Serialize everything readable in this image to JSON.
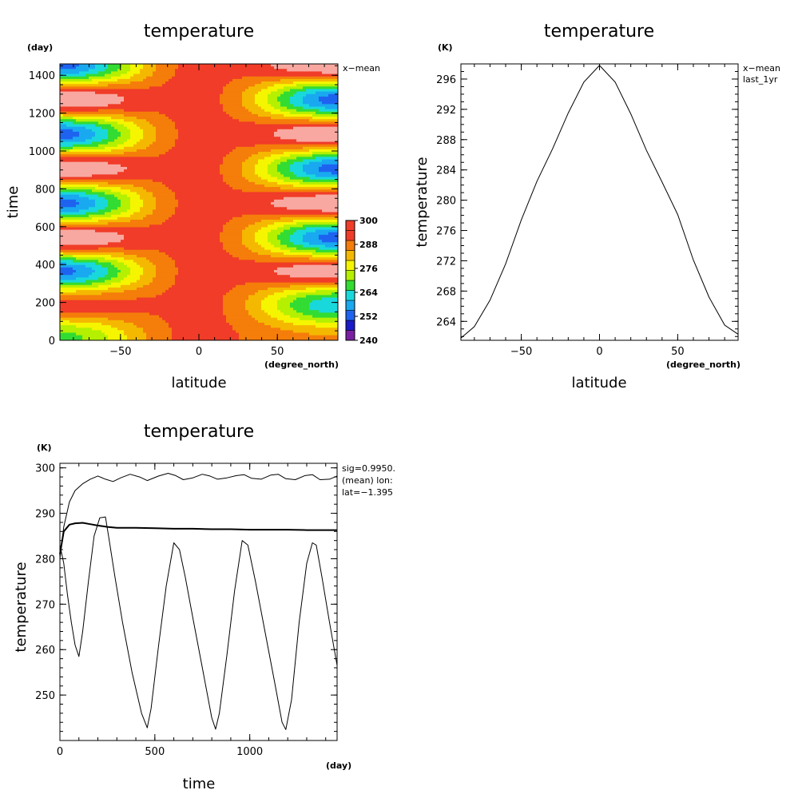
{
  "charts": [
    {
      "title": "temperature",
      "xlabel": "latitude",
      "ylabel": "time",
      "x_unit": "(degree_north)",
      "y_unit": "(day)",
      "annotation": "x−mean",
      "x_ticks": [
        "−50",
        "0",
        "50"
      ],
      "y_ticks": [
        "0",
        "200",
        "400",
        "600",
        "800",
        "1000",
        "1200",
        "1400"
      ],
      "colorbar_labels": [
        "300",
        "288",
        "276",
        "264",
        "252",
        "240"
      ]
    },
    {
      "title": "temperature",
      "xlabel": "latitude",
      "ylabel": "temperature",
      "x_unit": "(degree_north)",
      "y_unit": "(K)",
      "annotation_lines": [
        "x−mean",
        "last_1yr"
      ],
      "x_ticks": [
        "−50",
        "0",
        "50"
      ],
      "y_ticks": [
        "264",
        "268",
        "272",
        "276",
        "280",
        "284",
        "288",
        "292",
        "296"
      ]
    },
    {
      "title": "temperature",
      "xlabel": "time",
      "ylabel": "temperature",
      "x_unit": "(day)",
      "y_unit": "(K)",
      "annotation_lines": [
        "sig=0.9950.",
        "(mean) lon:",
        "lat=−1.395"
      ],
      "x_ticks": [
        "0",
        "500",
        "1000"
      ],
      "y_ticks": [
        "250",
        "260",
        "270",
        "280",
        "290",
        "300"
      ]
    }
  ],
  "chart_data": [
    {
      "type": "heatmap",
      "title": "temperature",
      "xlabel": "latitude",
      "ylabel": "time",
      "xlim": [
        -88.6,
        88.6
      ],
      "ylim": [
        0,
        1460
      ],
      "x_ticks": [
        -50,
        0,
        50
      ],
      "y_ticks": [
        0,
        200,
        400,
        600,
        800,
        1000,
        1200,
        1400
      ],
      "contour_levels": [
        240,
        246,
        252,
        258,
        264,
        270,
        276,
        282,
        288,
        294,
        300
      ],
      "colorbar_labels": [
        300,
        288,
        276,
        264,
        252,
        240
      ],
      "colors": [
        "#7a1fa2",
        "#1a1ac8",
        "#1e63f0",
        "#19a9f0",
        "#19d8dc",
        "#32dc32",
        "#b4f000",
        "#f5f500",
        "#f5b800",
        "#f57d0a",
        "#f03c28",
        "#f8a8a0"
      ],
      "field_min_region_K": 240,
      "field_max_region_K": 300
    },
    {
      "type": "line",
      "title": "temperature",
      "xlabel": "latitude",
      "ylabel": "temperature",
      "xlim": [
        -88.6,
        88.6
      ],
      "ylim": [
        261.5,
        298
      ],
      "x_ticks": [
        -50,
        0,
        50
      ],
      "y_ticks": [
        264,
        268,
        272,
        276,
        280,
        284,
        288,
        292,
        296
      ],
      "series": [
        {
          "x": [
            -88.6,
            -80,
            -70,
            -60,
            -50,
            -40,
            -30,
            -20,
            -10,
            0,
            10,
            20,
            30,
            40,
            50,
            60,
            70,
            80,
            88.6
          ],
          "values": [
            261.8,
            263.3,
            266.8,
            271.6,
            277.4,
            282.5,
            286.8,
            291.5,
            295.6,
            297.8,
            295.6,
            291.4,
            286.6,
            282.4,
            278.1,
            272.1,
            267.2,
            263.5,
            262.3
          ]
        }
      ]
    },
    {
      "type": "line",
      "title": "temperature",
      "xlabel": "time",
      "ylabel": "temperature",
      "xlim": [
        0,
        1460
      ],
      "ylim": [
        240,
        301
      ],
      "x_ticks": [
        0,
        500,
        1000
      ],
      "y_ticks": [
        250,
        260,
        270,
        280,
        290,
        300
      ],
      "series": [
        {
          "x": [
            0,
            20,
            50,
            80,
            120,
            160,
            200,
            240,
            280,
            320,
            370,
            420,
            460,
            520,
            570,
            610,
            650,
            700,
            750,
            790,
            830,
            880,
            930,
            970,
            1010,
            1060,
            1110,
            1150,
            1190,
            1240,
            1290,
            1330,
            1370,
            1420,
            1460
          ],
          "values": [
            280,
            287,
            292.5,
            295,
            296.5,
            297.5,
            298.2,
            297.5,
            297,
            297.8,
            298.6,
            298,
            297.2,
            298.2,
            298.8,
            298.3,
            297.4,
            297.8,
            298.6,
            298.2,
            297.5,
            297.8,
            298.3,
            298.5,
            297.7,
            297.5,
            298.4,
            298.6,
            297.6,
            297.4,
            298.3,
            298.5,
            297.4,
            297.5,
            298.2
          ]
        },
        {
          "x": [
            0,
            20,
            50,
            80,
            120,
            160,
            200,
            250,
            300,
            400,
            500,
            600,
            700,
            800,
            900,
            1000,
            1100,
            1200,
            1300,
            1400,
            1460
          ],
          "values": [
            281,
            286,
            287.5,
            287.8,
            287.9,
            287.6,
            287.3,
            287.0,
            286.8,
            286.8,
            286.7,
            286.6,
            286.6,
            286.5,
            286.5,
            286.4,
            286.4,
            286.4,
            286.3,
            286.3,
            286.3
          ]
        },
        {
          "x": [
            0,
            20,
            40,
            60,
            80,
            100,
            120,
            150,
            180,
            210,
            240,
            260,
            290,
            330,
            380,
            430,
            460,
            480,
            520,
            560,
            600,
            630,
            660,
            700,
            750,
            800,
            820,
            840,
            880,
            920,
            960,
            990,
            1030,
            1080,
            1130,
            1170,
            1190,
            1220,
            1260,
            1300,
            1330,
            1350,
            1380,
            1420,
            1460
          ],
          "values": [
            283,
            279,
            272,
            266,
            261,
            258.5,
            264,
            275,
            285,
            289,
            289.2,
            284,
            276,
            266,
            255,
            246,
            242.8,
            247,
            261,
            274,
            283.5,
            282,
            276,
            267,
            256,
            245,
            242.5,
            246,
            259,
            273,
            284,
            283,
            275,
            264,
            253,
            244,
            242.4,
            249,
            266,
            279,
            283.5,
            283,
            276,
            266,
            256.5
          ]
        }
      ]
    }
  ]
}
